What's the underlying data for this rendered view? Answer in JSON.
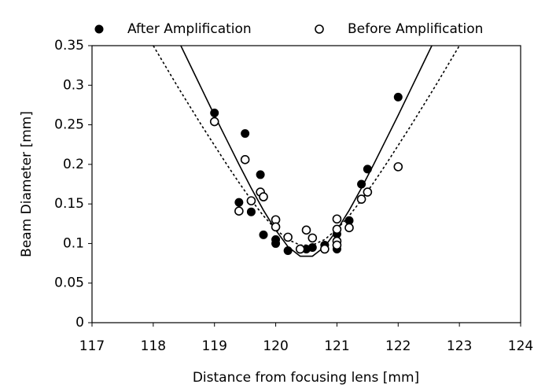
{
  "chart_data": {
    "type": "scatter",
    "x_label": "Distance from focusing lens [mm]",
    "y_label": "Beam Diameter [mm]",
    "xlim": [
      117,
      124
    ],
    "xticks": [
      117,
      118,
      119,
      120,
      121,
      122,
      123,
      124
    ],
    "ylim": [
      0,
      0.35
    ],
    "yticks": [
      0,
      0.05,
      0.1,
      0.15,
      0.2,
      0.25,
      0.3,
      0.35
    ],
    "legend": "top",
    "color": "#000000",
    "series": [
      {
        "name": "After Amplification",
        "marker": "filled",
        "x": [
          119,
          119.4,
          119.5,
          119.6,
          119.75,
          119.8,
          120,
          120,
          120.2,
          120.5,
          120.6,
          120.8,
          121,
          121,
          121.2,
          121.4,
          121.5,
          122
        ],
        "values": [
          0.265,
          0.152,
          0.239,
          0.14,
          0.187,
          0.111,
          0.1,
          0.105,
          0.091,
          0.093,
          0.095,
          0.098,
          0.093,
          0.112,
          0.129,
          0.175,
          0.194,
          0.285
        ]
      },
      {
        "name": "Before Amplification",
        "marker": "open",
        "x": [
          119,
          119.4,
          119.5,
          119.6,
          119.75,
          119.8,
          120,
          120,
          120.2,
          120.4,
          120.5,
          120.6,
          120.8,
          121,
          121,
          121,
          121,
          121.2,
          121.4,
          121.5,
          122
        ],
        "values": [
          0.254,
          0.141,
          0.206,
          0.154,
          0.165,
          0.159,
          0.13,
          0.121,
          0.108,
          0.093,
          0.117,
          0.107,
          0.093,
          0.131,
          0.118,
          0.103,
          0.098,
          0.12,
          0.156,
          0.165,
          0.197
        ]
      },
      {
        "type": "line",
        "line_style": "solid",
        "x": [
          118.4,
          118.6,
          118.8,
          119,
          119.2,
          119.4,
          119.6,
          119.8,
          120,
          120.2,
          120.4,
          120.6,
          120.8,
          121,
          121.2,
          121.4,
          121.6,
          121.8,
          122,
          122.2,
          122.4,
          122.6
        ],
        "values": [
          0.358,
          0.326,
          0.294,
          0.262,
          0.231,
          0.2,
          0.17,
          0.142,
          0.117,
          0.096,
          0.084,
          0.084,
          0.096,
          0.117,
          0.142,
          0.17,
          0.2,
          0.231,
          0.262,
          0.294,
          0.326,
          0.358
        ]
      },
      {
        "type": "line",
        "line_style": "dashed",
        "x": [
          118,
          118.2,
          118.4,
          118.6,
          118.8,
          119,
          119.2,
          119.4,
          119.6,
          119.8,
          120,
          120.2,
          120.4,
          120.6,
          120.8,
          121,
          121.2,
          121.4,
          121.6,
          121.8,
          122,
          122.2,
          122.4,
          122.6,
          122.8,
          123
        ],
        "values": [
          0.35,
          0.324,
          0.298,
          0.273,
          0.248,
          0.224,
          0.2,
          0.177,
          0.155,
          0.135,
          0.118,
          0.105,
          0.098,
          0.098,
          0.105,
          0.118,
          0.135,
          0.155,
          0.177,
          0.2,
          0.224,
          0.248,
          0.273,
          0.298,
          0.324,
          0.35
        ]
      }
    ]
  }
}
